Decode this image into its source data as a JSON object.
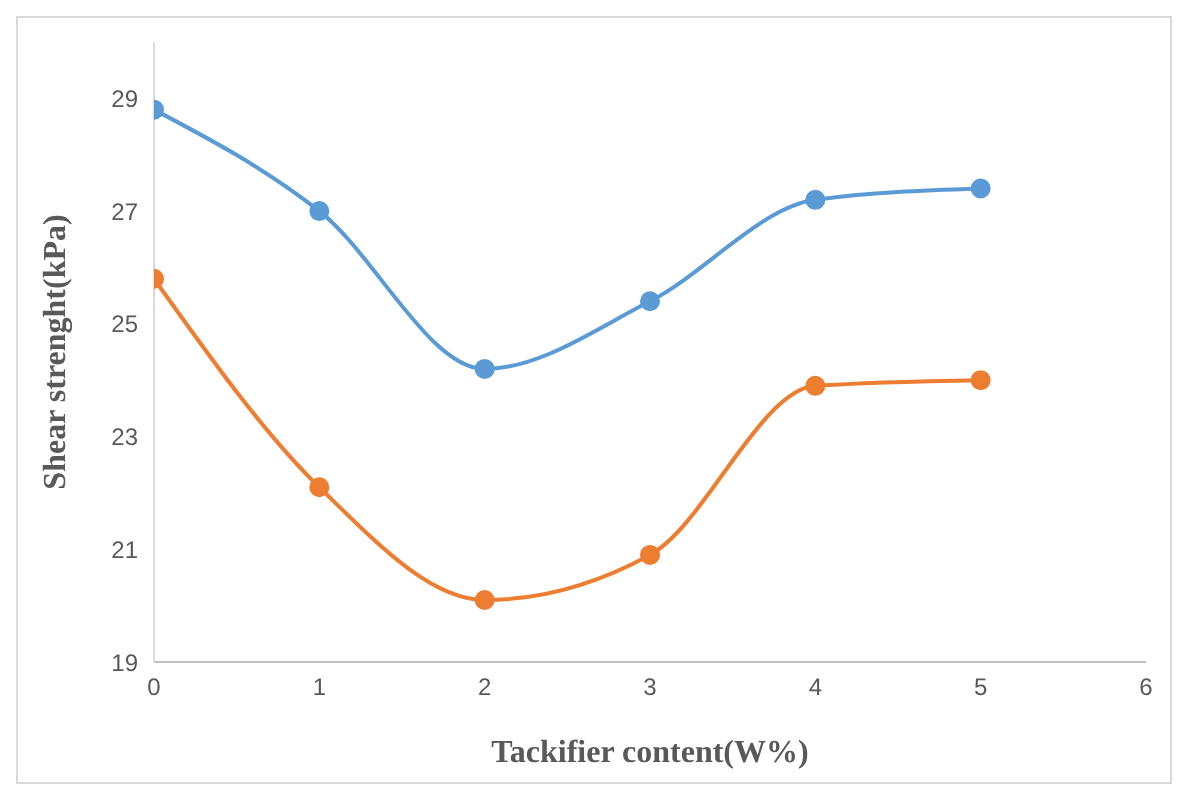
{
  "chart_data": {
    "type": "line",
    "xlabel": "Tackifier content(W%)",
    "ylabel": "Shear strenght(kPa)",
    "x": [
      0,
      1,
      2,
      3,
      4,
      5
    ],
    "xlim": [
      0,
      6
    ],
    "xticks": [
      0,
      1,
      2,
      3,
      4,
      5,
      6
    ],
    "ylim": [
      19,
      30
    ],
    "yticks": [
      19,
      21,
      23,
      25,
      27,
      29
    ],
    "grid": false,
    "legend": false,
    "marker": "circle",
    "series": [
      {
        "color": "#5b9bd5",
        "values": [
          28.8,
          27.0,
          24.2,
          25.4,
          27.2,
          27.4
        ]
      },
      {
        "color": "#ed7d31",
        "values": [
          25.8,
          22.1,
          20.1,
          20.9,
          23.9,
          24.0
        ]
      }
    ]
  }
}
